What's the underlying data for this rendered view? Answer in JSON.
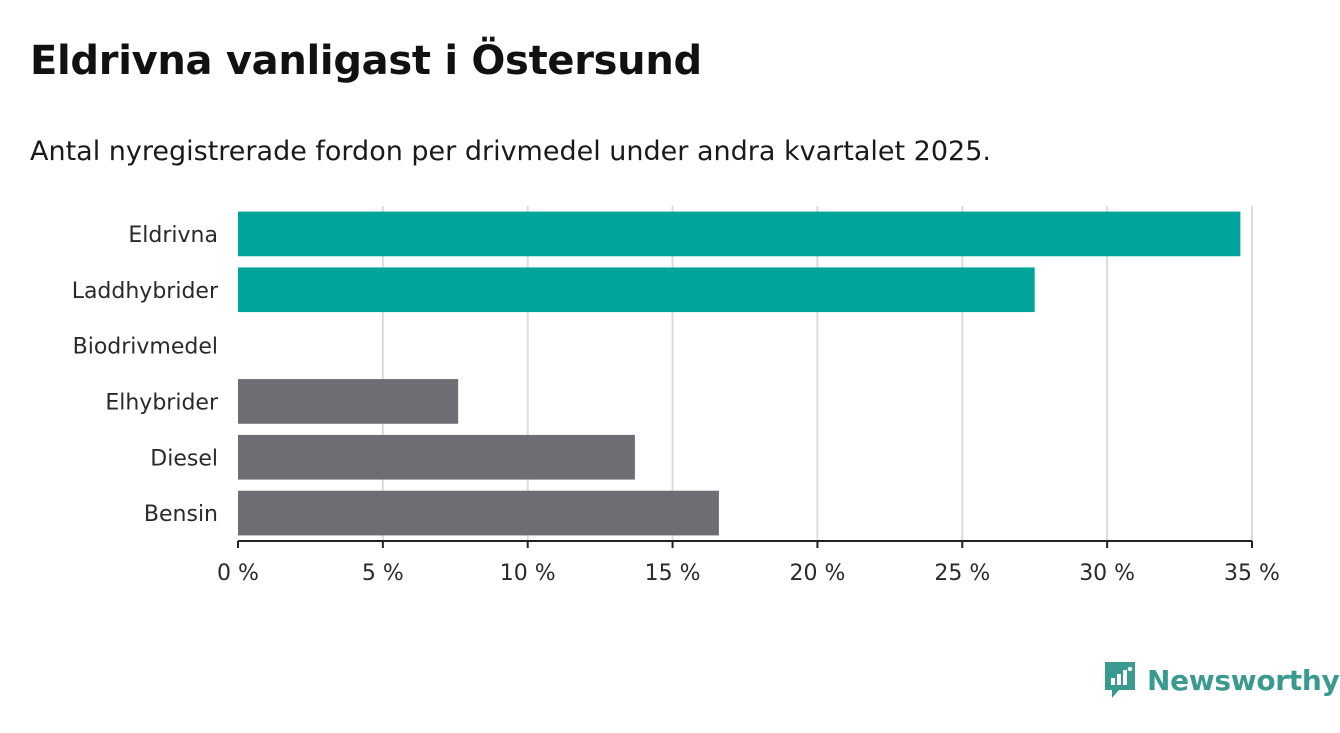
{
  "header": {
    "title": "Eldrivna vanligast i Östersund",
    "subtitle": "Antal nyregistrerade fordon per drivmedel under andra kvartalet 2025."
  },
  "brand": {
    "name": "Newsworthy",
    "color": "#3a9a90",
    "icon": "newsworthy-logo-icon"
  },
  "colors": {
    "highlight": "#00a49a",
    "default": "#6e6d73",
    "grid": "#dcdcdc",
    "axis": "#222222"
  },
  "chart_data": {
    "type": "bar",
    "orientation": "horizontal",
    "categories": [
      "Eldrivna",
      "Laddhybrider",
      "Biodrivmedel",
      "Elhybrider",
      "Diesel",
      "Bensin"
    ],
    "values": [
      34.6,
      27.5,
      0,
      7.6,
      13.7,
      16.6
    ],
    "highlighted": [
      true,
      true,
      false,
      false,
      false,
      false
    ],
    "xlim": [
      0,
      35
    ],
    "xticks": [
      0,
      5,
      10,
      15,
      20,
      25,
      30,
      35
    ],
    "xtick_labels": [
      "0 %",
      "5 %",
      "10 %",
      "15 %",
      "20 %",
      "25 %",
      "30 %",
      "35 %"
    ],
    "xlabel": "",
    "ylabel": "",
    "grid": true
  }
}
